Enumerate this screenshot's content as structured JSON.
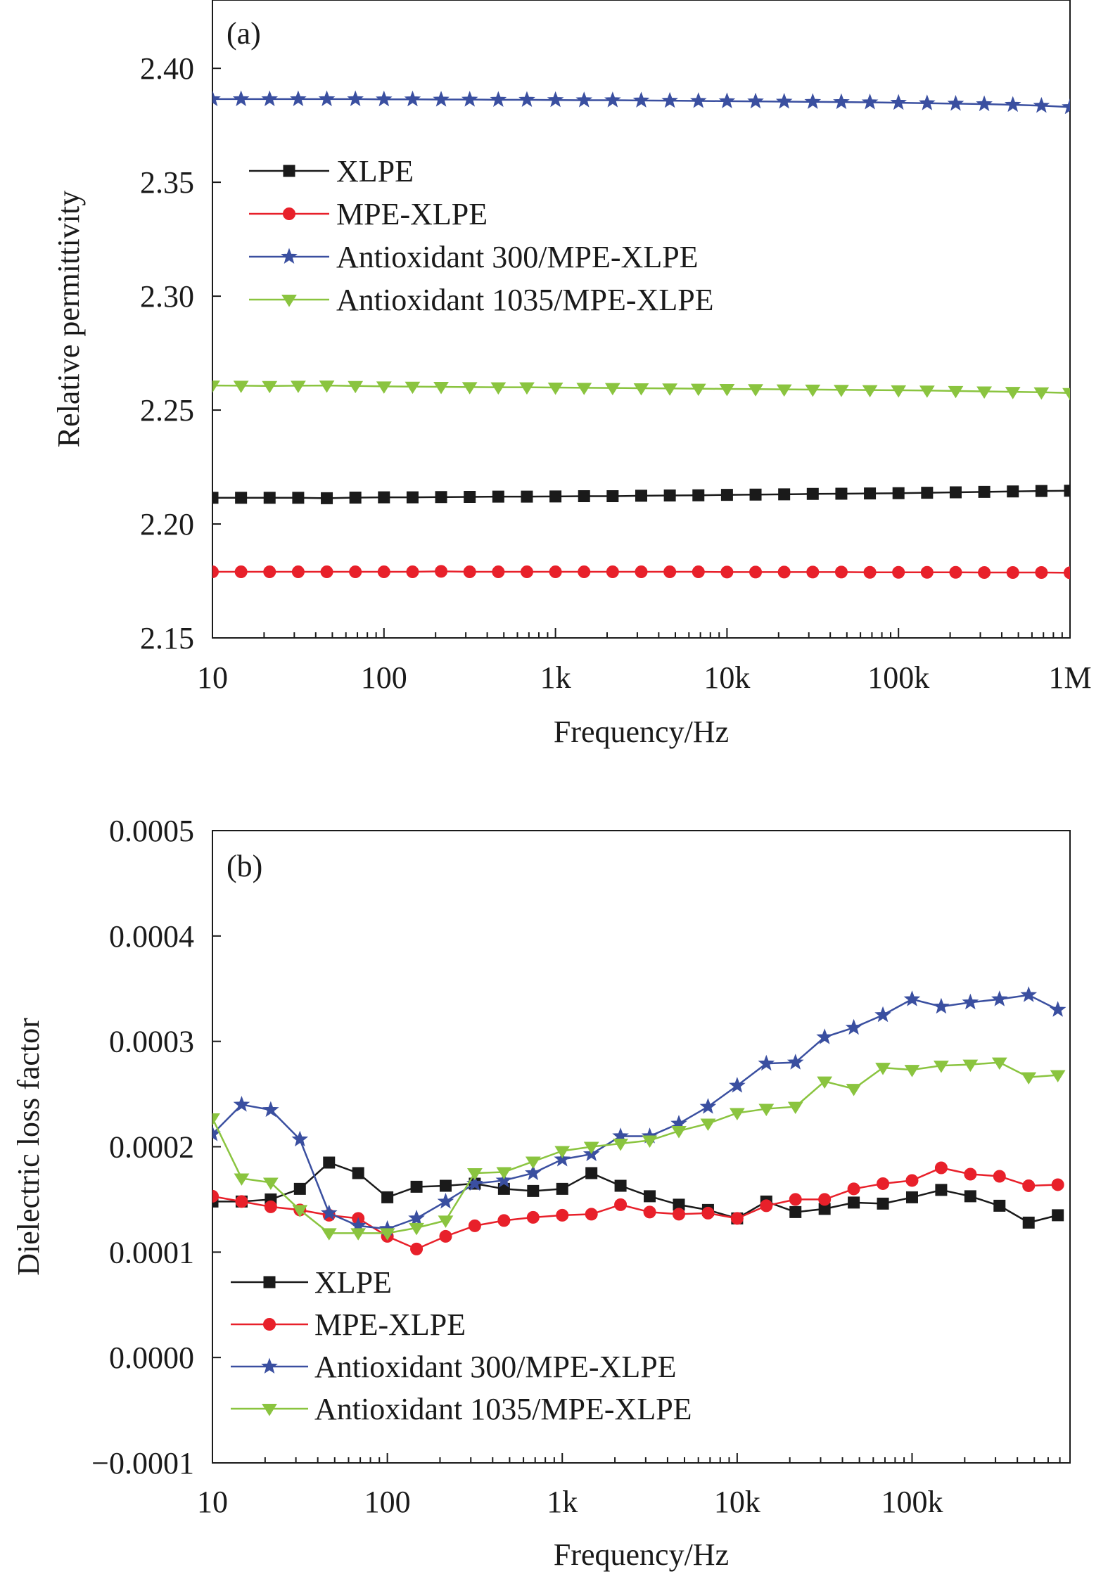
{
  "chart_data": [
    {
      "type": "line",
      "panel_label": "(a)",
      "xlabel": "Frequency/Hz",
      "ylabel": "Relative permittivity",
      "xscale": "log",
      "xlim": [
        10,
        1000000
      ],
      "ylim": [
        2.15,
        2.43
      ],
      "x_ticks": [
        10,
        100,
        1000,
        10000,
        100000,
        1000000
      ],
      "x_tick_labels": [
        "10",
        "100",
        "1k",
        "10k",
        "100k",
        "1M"
      ],
      "y_ticks": [
        2.15,
        2.2,
        2.25,
        2.3,
        2.35,
        2.4
      ],
      "y_tick_labels": [
        "2.15",
        "2.20",
        "2.25",
        "2.30",
        "2.35",
        "2.40"
      ],
      "legend_position": "upper-left",
      "x": [
        10,
        14.68,
        21.54,
        31.62,
        46.42,
        68.13,
        100,
        146.8,
        215.4,
        316.2,
        464.2,
        681.3,
        1000,
        1468,
        2154,
        3162,
        4642,
        6813,
        10000,
        14678,
        21544,
        31623,
        46416,
        68129,
        100000,
        146780,
        215440,
        316230,
        464160,
        681290,
        1000000
      ],
      "series": [
        {
          "name": "XLPE",
          "color": "#1a1a1a",
          "marker": "square",
          "values": [
            2.2115,
            2.2115,
            2.2115,
            2.2115,
            2.2113,
            2.2116,
            2.2117,
            2.2117,
            2.2118,
            2.2119,
            2.212,
            2.212,
            2.2121,
            2.2122,
            2.2122,
            2.2124,
            2.2125,
            2.2126,
            2.2128,
            2.2129,
            2.213,
            2.2132,
            2.2133,
            2.2134,
            2.2135,
            2.2137,
            2.2139,
            2.2141,
            2.2143,
            2.2145,
            2.2146
          ]
        },
        {
          "name": "MPE-XLPE",
          "color": "#e8202a",
          "marker": "circle",
          "values": [
            2.179,
            2.179,
            2.179,
            2.179,
            2.179,
            2.179,
            2.179,
            2.179,
            2.1792,
            2.179,
            2.179,
            2.179,
            2.179,
            2.179,
            2.179,
            2.179,
            2.179,
            2.179,
            2.1789,
            2.1789,
            2.1789,
            2.1789,
            2.1789,
            2.1788,
            2.1788,
            2.1788,
            2.1788,
            2.1787,
            2.1787,
            2.1787,
            2.1786
          ]
        },
        {
          "name": "Antioxidant 300/MPE-XLPE",
          "color": "#3a4fa0",
          "marker": "star",
          "values": [
            2.3865,
            2.3865,
            2.3865,
            2.3865,
            2.3865,
            2.3865,
            2.3864,
            2.3864,
            2.3863,
            2.3863,
            2.3862,
            2.3862,
            2.3861,
            2.386,
            2.386,
            2.3859,
            2.3858,
            2.3857,
            2.3856,
            2.3855,
            2.3854,
            2.3853,
            2.3852,
            2.3851,
            2.3849,
            2.3847,
            2.3845,
            2.3843,
            2.384,
            2.3836,
            2.383
          ]
        },
        {
          "name": "Antioxidant 1035/MPE-XLPE",
          "color": "#8ac43f",
          "marker": "triangle-down",
          "values": [
            2.2608,
            2.2607,
            2.2606,
            2.2607,
            2.2608,
            2.2606,
            2.2604,
            2.2603,
            2.2602,
            2.2601,
            2.26,
            2.26,
            2.2599,
            2.2598,
            2.2597,
            2.2596,
            2.2595,
            2.2594,
            2.2593,
            2.2592,
            2.2591,
            2.259,
            2.2589,
            2.2588,
            2.2587,
            2.2586,
            2.2584,
            2.2582,
            2.258,
            2.2578,
            2.2575
          ]
        }
      ]
    },
    {
      "type": "line",
      "panel_label": "(b)",
      "xlabel": "Frequency/Hz",
      "ylabel": "Dielectric loss factor",
      "xscale": "log",
      "xlim": [
        10,
        800000
      ],
      "ylim": [
        -0.0001,
        0.0005
      ],
      "x_ticks": [
        10,
        100,
        1000,
        10000,
        100000
      ],
      "x_tick_labels": [
        "10",
        "100",
        "1k",
        "10k",
        "100k"
      ],
      "y_ticks": [
        -0.0001,
        0,
        0.0001,
        0.0002,
        0.0003,
        0.0004,
        0.0005
      ],
      "y_tick_labels": [
        "−0.0001",
        "0.0000",
        "0.0001",
        "0.0002",
        "0.0003",
        "0.0004",
        "0.0005"
      ],
      "legend_position": "lower-left",
      "x": [
        10,
        14.68,
        21.54,
        31.62,
        46.42,
        68.13,
        100,
        146.8,
        215.4,
        316.2,
        464.2,
        681.3,
        1000,
        1468,
        2154,
        3162,
        4642,
        6813,
        10000,
        14678,
        21544,
        31623,
        46416,
        68129,
        100000,
        146780,
        215440,
        316230,
        464160,
        681290
      ],
      "series": [
        {
          "name": "XLPE",
          "color": "#1a1a1a",
          "marker": "square",
          "values": [
            0.000148,
            0.000148,
            0.00015,
            0.00016,
            0.000185,
            0.000175,
            0.000152,
            0.000162,
            0.000163,
            0.000165,
            0.00016,
            0.000158,
            0.00016,
            0.000175,
            0.000163,
            0.000153,
            0.000145,
            0.00014,
            0.000132,
            0.000148,
            0.000138,
            0.000141,
            0.000147,
            0.000146,
            0.000152,
            0.000159,
            0.000153,
            0.000144,
            0.000128,
            0.000135
          ]
        },
        {
          "name": "MPE-XLPE",
          "color": "#e8202a",
          "marker": "circle",
          "values": [
            0.000153,
            0.000148,
            0.000143,
            0.00014,
            0.000135,
            0.000132,
            0.000115,
            0.000103,
            0.000115,
            0.000125,
            0.00013,
            0.000133,
            0.000135,
            0.000136,
            0.000145,
            0.000138,
            0.000136,
            0.000137,
            0.000132,
            0.000144,
            0.00015,
            0.00015,
            0.00016,
            0.000165,
            0.000168,
            0.00018,
            0.000174,
            0.000172,
            0.000163,
            0.000164
          ]
        },
        {
          "name": "Antioxidant 300/MPE-XLPE",
          "color": "#3a4fa0",
          "marker": "star",
          "values": [
            0.000212,
            0.00024,
            0.000235,
            0.000207,
            0.000137,
            0.000125,
            0.000122,
            0.000132,
            0.000148,
            0.000165,
            0.000168,
            0.000175,
            0.000188,
            0.000193,
            0.00021,
            0.00021,
            0.000222,
            0.000238,
            0.000258,
            0.000279,
            0.00028,
            0.000304,
            0.000313,
            0.000325,
            0.00034,
            0.000333,
            0.000337,
            0.00034,
            0.000344,
            0.00033
          ]
        },
        {
          "name": "Antioxidant 1035/MPE-XLPE",
          "color": "#8ac43f",
          "marker": "triangle-down",
          "values": [
            0.000227,
            0.00017,
            0.000166,
            0.00014,
            0.000118,
            0.000118,
            0.000118,
            0.000123,
            0.00013,
            0.000175,
            0.000176,
            0.000186,
            0.000196,
            0.0002,
            0.000203,
            0.000206,
            0.000215,
            0.000222,
            0.000232,
            0.000236,
            0.000238,
            0.000262,
            0.000255,
            0.000275,
            0.000273,
            0.000277,
            0.000278,
            0.00028,
            0.000266,
            0.000268
          ]
        }
      ]
    }
  ]
}
